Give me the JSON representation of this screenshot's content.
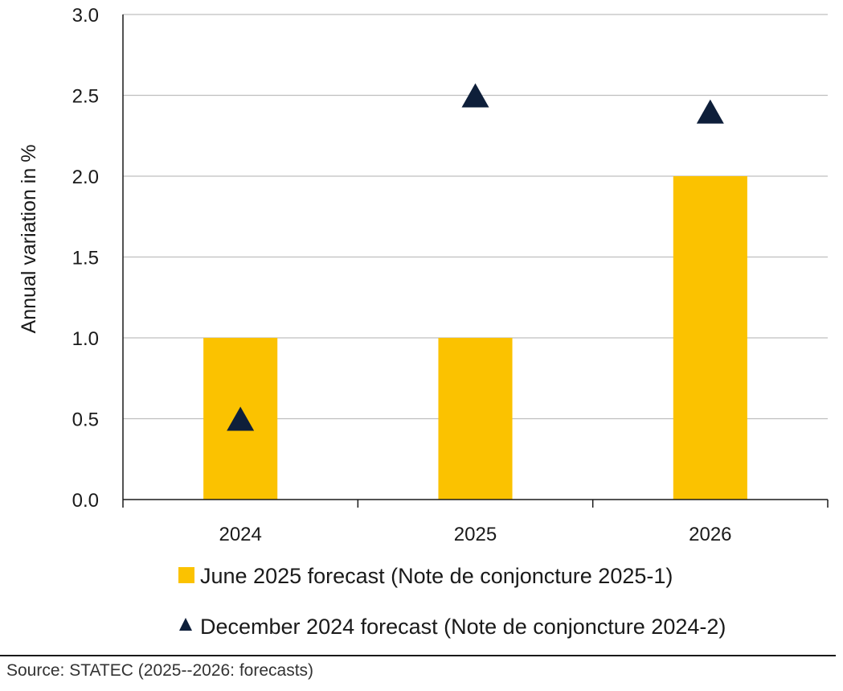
{
  "chart_data": {
    "type": "bar",
    "categories": [
      "2024",
      "2025",
      "2026"
    ],
    "series": [
      {
        "name": "June 2025 forecast (Note de conjoncture 2025-1)",
        "kind": "bar",
        "values": [
          1.0,
          1.0,
          2.0
        ],
        "color": "#fbc200"
      },
      {
        "name": "December 2024 forecast (Note de conjoncture 2024-2)",
        "kind": "marker-triangle",
        "values": [
          0.5,
          2.5,
          2.4
        ],
        "color": "#0e1f3a"
      }
    ],
    "ylabel": "Annual variation in %",
    "xlabel": "",
    "ylim": [
      0,
      3.0
    ],
    "yticks": [
      "0.0",
      "0.5",
      "1.0",
      "1.5",
      "2.0",
      "2.5",
      "3.0"
    ],
    "grid": "horizontal",
    "legend_position": "bottom"
  },
  "footer": {
    "source": "Source: STATEC (2025--2026: forecasts)"
  },
  "colors": {
    "bar": "#fbc200",
    "marker": "#0e1f3a",
    "grid": "#bfbfbf",
    "axis": "#1a1a1a"
  }
}
